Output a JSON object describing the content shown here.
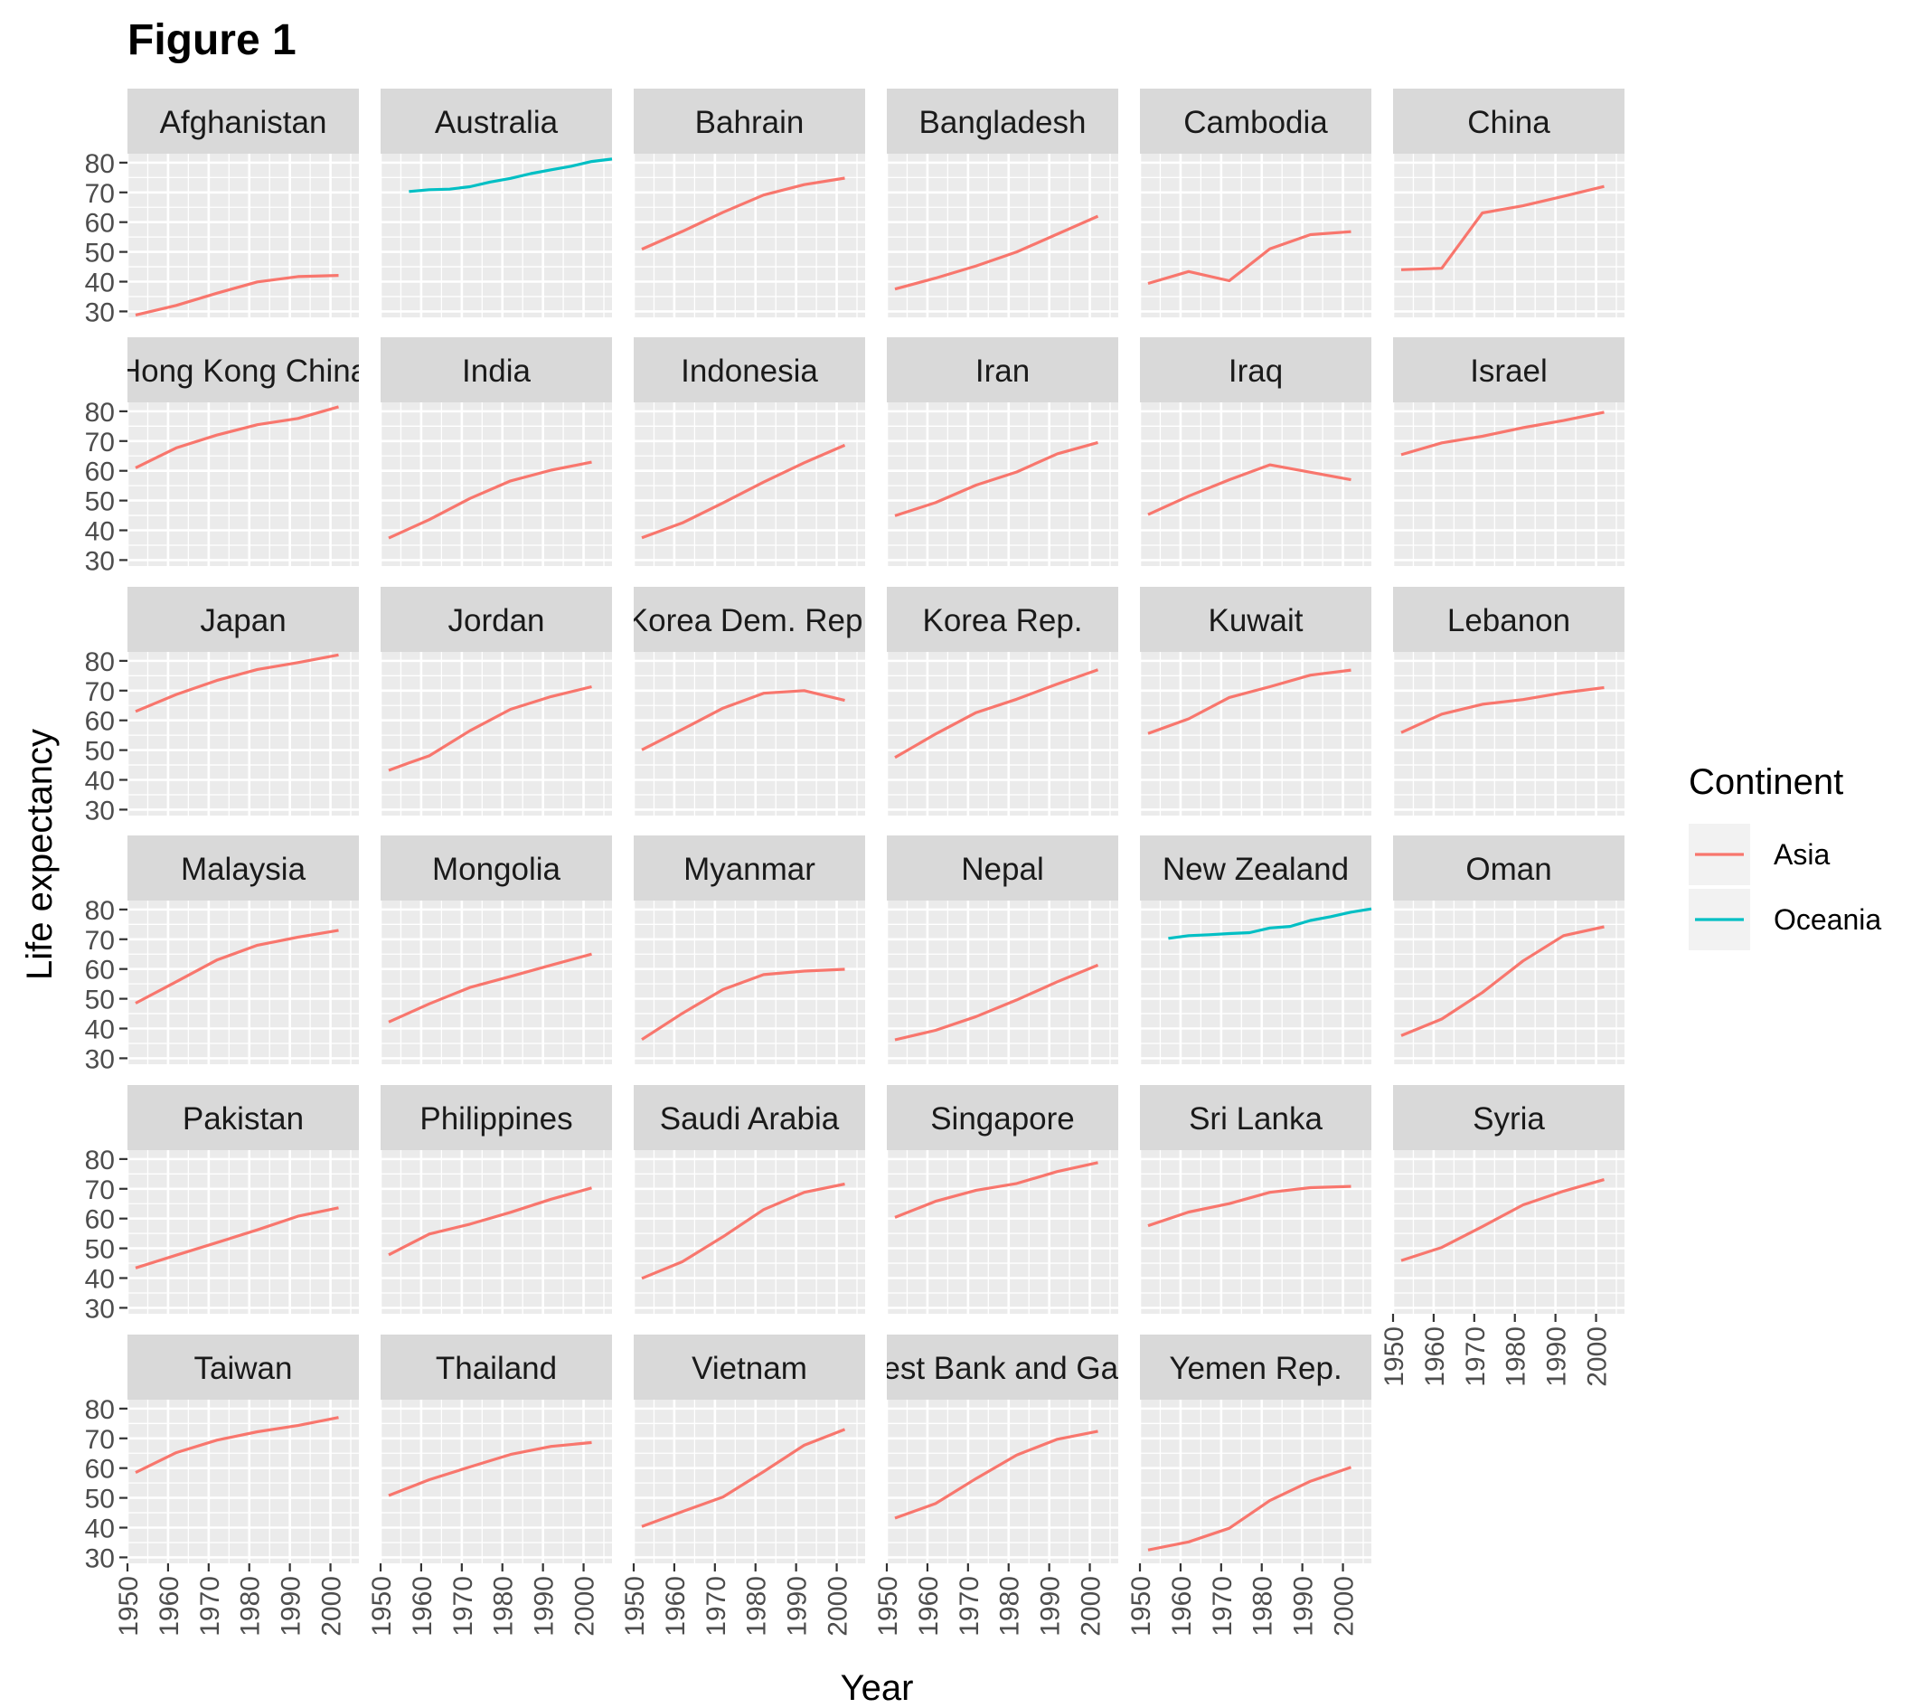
{
  "figure_title": "Figure 1",
  "chart_data": {
    "type": "line",
    "title": "Figure 1",
    "xlabel": "Year",
    "ylabel": "Life expectancy",
    "xlim": [
      1950,
      2007
    ],
    "ylim": [
      28,
      83
    ],
    "x_ticks": [
      1950,
      1960,
      1970,
      1980,
      1990,
      2000
    ],
    "y_ticks": [
      30,
      40,
      50,
      60,
      70,
      80
    ],
    "grid": true,
    "legend": {
      "title": "Continent",
      "position": "right",
      "entries": [
        {
          "name": "Asia",
          "color": "#F8766D"
        },
        {
          "name": "Oceania",
          "color": "#00BFC4"
        }
      ]
    },
    "panels": [
      {
        "name": "Afghanistan",
        "continent": "Asia",
        "x": [
          1952,
          1962,
          1972,
          1982,
          1992,
          2002
        ],
        "y": [
          28.8,
          32.0,
          36.1,
          39.9,
          41.7,
          42.1
        ]
      },
      {
        "name": "Australia",
        "continent": "Oceania",
        "x": [
          1957,
          1962,
          1967,
          1972,
          1977,
          1982,
          1987,
          1992,
          1997,
          2002,
          2007
        ],
        "y": [
          70.3,
          70.9,
          71.1,
          71.9,
          73.5,
          74.7,
          76.3,
          77.6,
          78.8,
          80.4,
          81.2
        ]
      },
      {
        "name": "Bahrain",
        "continent": "Asia",
        "x": [
          1952,
          1962,
          1972,
          1982,
          1992,
          2002
        ],
        "y": [
          50.9,
          56.9,
          63.3,
          69.1,
          72.6,
          74.8
        ]
      },
      {
        "name": "Bangladesh",
        "continent": "Asia",
        "x": [
          1952,
          1962,
          1972,
          1982,
          1992,
          2002
        ],
        "y": [
          37.5,
          41.2,
          45.3,
          50.0,
          56.0,
          62.0
        ]
      },
      {
        "name": "Cambodia",
        "continent": "Asia",
        "x": [
          1952,
          1962,
          1972,
          1982,
          1992,
          2002
        ],
        "y": [
          39.4,
          43.4,
          40.3,
          51.0,
          55.8,
          56.8
        ]
      },
      {
        "name": "China",
        "continent": "Asia",
        "x": [
          1952,
          1962,
          1972,
          1982,
          1992,
          2002
        ],
        "y": [
          44.0,
          44.5,
          63.1,
          65.5,
          68.7,
          72.0
        ]
      },
      {
        "name": "Hong Kong China",
        "continent": "Asia",
        "x": [
          1952,
          1962,
          1972,
          1982,
          1992,
          2002
        ],
        "y": [
          61.0,
          67.7,
          72.0,
          75.5,
          77.6,
          81.5
        ]
      },
      {
        "name": "India",
        "continent": "Asia",
        "x": [
          1952,
          1962,
          1972,
          1982,
          1992,
          2002
        ],
        "y": [
          37.4,
          43.6,
          50.7,
          56.6,
          60.2,
          62.9
        ]
      },
      {
        "name": "Indonesia",
        "continent": "Asia",
        "x": [
          1952,
          1962,
          1972,
          1982,
          1992,
          2002
        ],
        "y": [
          37.5,
          42.5,
          49.2,
          56.2,
          62.7,
          68.6
        ]
      },
      {
        "name": "Iran",
        "continent": "Asia",
        "x": [
          1952,
          1962,
          1972,
          1982,
          1992,
          2002
        ],
        "y": [
          44.9,
          49.3,
          55.2,
          59.6,
          65.7,
          69.5
        ]
      },
      {
        "name": "Iraq",
        "continent": "Asia",
        "x": [
          1952,
          1962,
          1972,
          1982,
          1992,
          2002
        ],
        "y": [
          45.3,
          51.5,
          57.0,
          62.0,
          59.5,
          57.0
        ]
      },
      {
        "name": "Israel",
        "continent": "Asia",
        "x": [
          1952,
          1962,
          1972,
          1982,
          1992,
          2002
        ],
        "y": [
          65.4,
          69.4,
          71.6,
          74.5,
          76.9,
          79.7
        ]
      },
      {
        "name": "Japan",
        "continent": "Asia",
        "x": [
          1952,
          1962,
          1972,
          1982,
          1992,
          2002
        ],
        "y": [
          63.0,
          68.7,
          73.4,
          77.1,
          79.4,
          82.0
        ]
      },
      {
        "name": "Jordan",
        "continent": "Asia",
        "x": [
          1952,
          1957,
          1962,
          1972,
          1982,
          1992,
          2002
        ],
        "y": [
          43.2,
          45.7,
          48.1,
          56.5,
          63.7,
          68.0,
          71.3
        ]
      },
      {
        "name": "Korea Dem. Rep.",
        "continent": "Asia",
        "x": [
          1952,
          1962,
          1972,
          1982,
          1992,
          2002
        ],
        "y": [
          50.1,
          57.0,
          64.1,
          69.1,
          70.0,
          66.7
        ]
      },
      {
        "name": "Korea Rep.",
        "continent": "Asia",
        "x": [
          1952,
          1962,
          1972,
          1982,
          1992,
          2002
        ],
        "y": [
          47.5,
          55.4,
          62.6,
          67.1,
          72.2,
          77.0
        ]
      },
      {
        "name": "Kuwait",
        "continent": "Asia",
        "x": [
          1952,
          1962,
          1972,
          1982,
          1992,
          2002
        ],
        "y": [
          55.6,
          60.5,
          67.7,
          71.3,
          75.2,
          76.9
        ]
      },
      {
        "name": "Lebanon",
        "continent": "Asia",
        "x": [
          1952,
          1962,
          1972,
          1982,
          1992,
          2002
        ],
        "y": [
          55.9,
          62.1,
          65.4,
          67.0,
          69.3,
          71.0
        ]
      },
      {
        "name": "Malaysia",
        "continent": "Asia",
        "x": [
          1952,
          1962,
          1972,
          1982,
          1992,
          2002
        ],
        "y": [
          48.5,
          55.7,
          63.0,
          68.0,
          70.7,
          73.0
        ]
      },
      {
        "name": "Mongolia",
        "continent": "Asia",
        "x": [
          1952,
          1962,
          1972,
          1982,
          1992,
          2002
        ],
        "y": [
          42.2,
          48.3,
          53.8,
          57.5,
          61.3,
          65.0
        ]
      },
      {
        "name": "Myanmar",
        "continent": "Asia",
        "x": [
          1952,
          1962,
          1972,
          1982,
          1992,
          2002
        ],
        "y": [
          36.3,
          45.1,
          53.1,
          58.1,
          59.3,
          59.9
        ]
      },
      {
        "name": "Nepal",
        "continent": "Asia",
        "x": [
          1952,
          1962,
          1972,
          1982,
          1992,
          2002
        ],
        "y": [
          36.2,
          39.4,
          44.0,
          49.6,
          55.7,
          61.3
        ]
      },
      {
        "name": "New Zealand",
        "continent": "Oceania",
        "x": [
          1957,
          1962,
          1967,
          1972,
          1977,
          1982,
          1987,
          1992,
          1997,
          2002,
          2007
        ],
        "y": [
          70.3,
          71.2,
          71.5,
          71.9,
          72.2,
          73.8,
          74.3,
          76.3,
          77.6,
          79.1,
          80.2
        ]
      },
      {
        "name": "Oman",
        "continent": "Asia",
        "x": [
          1952,
          1962,
          1972,
          1982,
          1992,
          2002
        ],
        "y": [
          37.6,
          43.2,
          52.1,
          62.7,
          71.2,
          74.2
        ]
      },
      {
        "name": "Pakistan",
        "continent": "Asia",
        "x": [
          1952,
          1962,
          1972,
          1982,
          1992,
          2002
        ],
        "y": [
          43.4,
          47.7,
          51.9,
          56.2,
          60.8,
          63.6
        ]
      },
      {
        "name": "Philippines",
        "continent": "Asia",
        "x": [
          1952,
          1957,
          1962,
          1972,
          1982,
          1992,
          2002
        ],
        "y": [
          47.8,
          51.3,
          54.8,
          58.1,
          62.1,
          66.5,
          70.3
        ]
      },
      {
        "name": "Saudi Arabia",
        "continent": "Asia",
        "x": [
          1952,
          1962,
          1972,
          1982,
          1992,
          2002
        ],
        "y": [
          39.9,
          45.5,
          53.9,
          63.0,
          68.8,
          71.6
        ]
      },
      {
        "name": "Singapore",
        "continent": "Asia",
        "x": [
          1952,
          1962,
          1972,
          1982,
          1992,
          2002
        ],
        "y": [
          60.4,
          65.8,
          69.5,
          71.8,
          75.8,
          78.8
        ]
      },
      {
        "name": "Sri Lanka",
        "continent": "Asia",
        "x": [
          1952,
          1962,
          1972,
          1982,
          1992,
          2002
        ],
        "y": [
          57.6,
          62.2,
          65.0,
          68.8,
          70.4,
          70.8
        ]
      },
      {
        "name": "Syria",
        "continent": "Asia",
        "x": [
          1952,
          1962,
          1972,
          1982,
          1992,
          2002
        ],
        "y": [
          45.9,
          50.3,
          57.3,
          64.6,
          69.2,
          73.1
        ]
      },
      {
        "name": "Taiwan",
        "continent": "Asia",
        "x": [
          1952,
          1962,
          1972,
          1982,
          1992,
          2002
        ],
        "y": [
          58.5,
          65.2,
          69.4,
          72.2,
          74.3,
          77.0
        ]
      },
      {
        "name": "Thailand",
        "continent": "Asia",
        "x": [
          1952,
          1962,
          1972,
          1982,
          1992,
          2002
        ],
        "y": [
          50.8,
          56.1,
          60.4,
          64.6,
          67.3,
          68.6
        ]
      },
      {
        "name": "Vietnam",
        "continent": "Asia",
        "x": [
          1952,
          1962,
          1972,
          1982,
          1992,
          2002
        ],
        "y": [
          40.4,
          45.4,
          50.3,
          58.8,
          67.7,
          73.0
        ]
      },
      {
        "name": "West Bank and Gaza",
        "continent": "Asia",
        "x": [
          1952,
          1962,
          1972,
          1982,
          1992,
          2002
        ],
        "y": [
          43.2,
          48.1,
          56.5,
          64.4,
          69.7,
          72.4
        ]
      },
      {
        "name": "Yemen Rep.",
        "continent": "Asia",
        "x": [
          1952,
          1962,
          1972,
          1982,
          1992,
          2002
        ],
        "y": [
          32.5,
          35.2,
          39.8,
          49.1,
          55.6,
          60.3
        ]
      }
    ]
  }
}
